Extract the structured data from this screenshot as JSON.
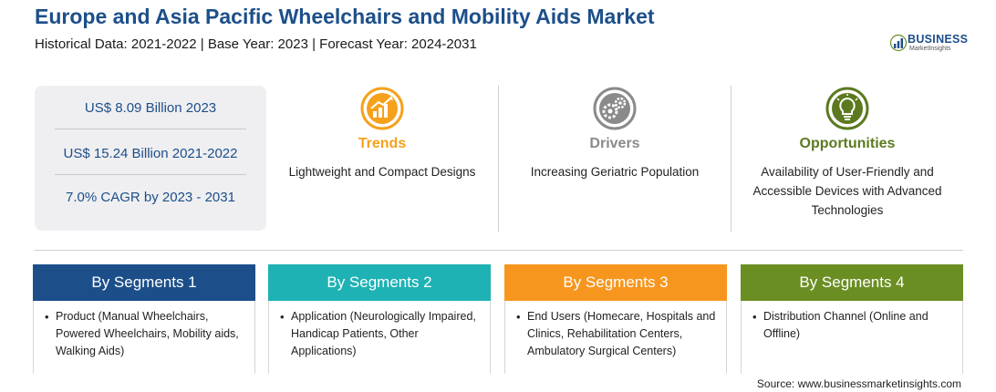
{
  "header": {
    "title": "Europe and Asia Pacific Wheelchairs and Mobility Aids Market",
    "subtitle": "Historical Data: 2021-2022 | Base Year: 2023 | Forecast Year: 2024-2031"
  },
  "logo": {
    "line1": "BUSINESS",
    "line2": "MarketInsights"
  },
  "stats": [
    {
      "text": "US$ 8.09 Billion 2023"
    },
    {
      "text": "US$ 15.24 Billion 2021-2022"
    },
    {
      "text": "7.0% CAGR by 2023 - 2031"
    }
  ],
  "columns": [
    {
      "title": "Trends",
      "text": "Lightweight and Compact Designs",
      "color": "#f5a11c",
      "icon": "trend-chart-icon"
    },
    {
      "title": "Drivers",
      "text": "Increasing Geriatric Population",
      "color": "#8a8a8a",
      "icon": "gears-icon"
    },
    {
      "title": "Opportunities",
      "text": "Availability of User-Friendly and Accessible Devices with Advanced Technologies",
      "color": "#5b7a1f",
      "icon": "lightbulb-icon"
    }
  ],
  "segments": [
    {
      "title": "By Segments 1",
      "text": "Product (Manual Wheelchairs, Powered Wheelchairs, Mobility aids, Walking Aids)",
      "color": "#1c4f8a"
    },
    {
      "title": "By Segments 2",
      "text": "Application (Neurologically Impaired, Handicap Patients, Other Applications)",
      "color": "#1eb2b4"
    },
    {
      "title": "By Segments 3",
      "text": "End Users (Homecare, Hospitals and Clinics, Rehabilitation Centers, Ambulatory Surgical Centers)",
      "color": "#f7961e"
    },
    {
      "title": "By Segments 4",
      "text": "Distribution Channel (Online and Offline)",
      "color": "#6b8e23"
    }
  ],
  "source": "Source: www.businessmarketinsights.com"
}
